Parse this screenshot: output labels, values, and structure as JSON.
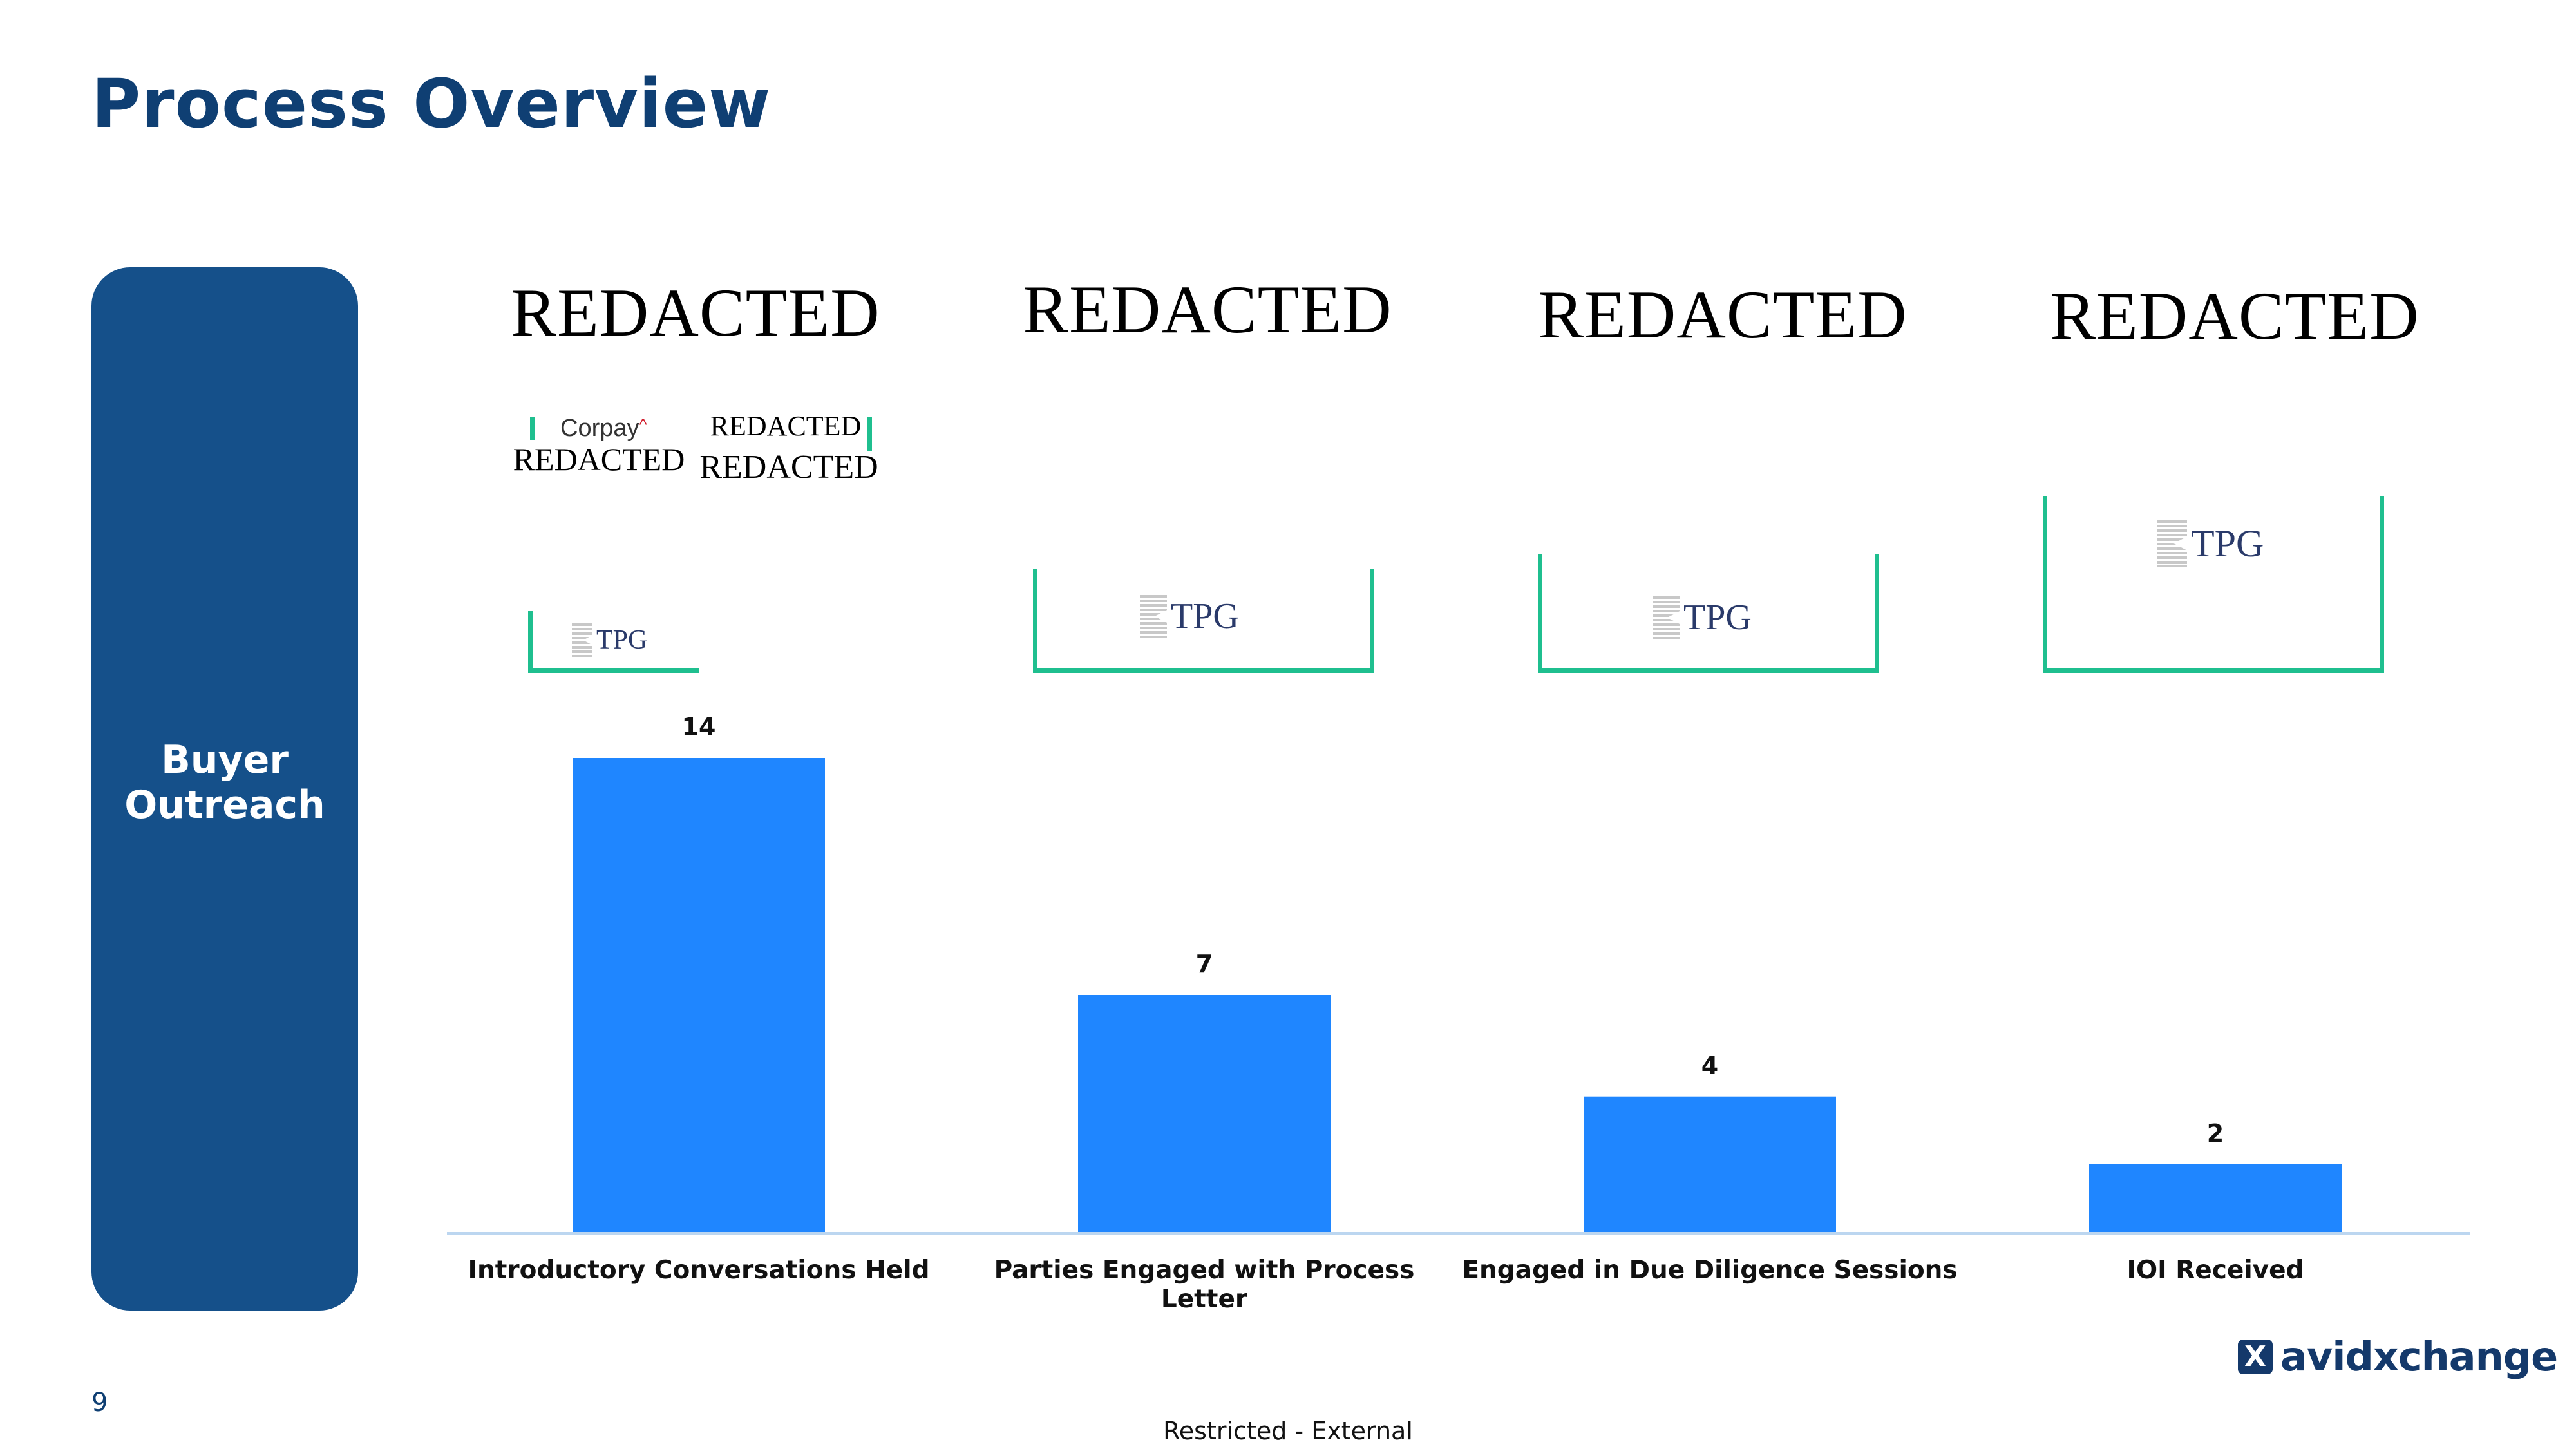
{
  "slide": {
    "title": "Process Overview",
    "side_label_line1": "Buyer",
    "side_label_line2": "Outreach",
    "page_number": "9",
    "footer": "Restricted - External",
    "brand": "avidxchange",
    "brand_icon": "X"
  },
  "annotations": {
    "headers": [
      "REDACTED",
      "REDACTED",
      "REDACTED",
      "REDACTED"
    ],
    "col1_corpay": "Corpay",
    "col1_redacted_a": "REDACTED",
    "col1_redacted_b": "REDACTED",
    "col1_redacted_c": "REDACTED",
    "tpg_label": "TPG"
  },
  "chart_data": {
    "type": "bar",
    "categories": [
      "Introductory Conversations Held",
      "Parties Engaged with Process Letter",
      "Engaged in Due Diligence Sessions",
      "IOI Received"
    ],
    "values": [
      14,
      7,
      4,
      2
    ],
    "value_labels": [
      "14",
      "7",
      "4",
      "2"
    ],
    "title": "",
    "xlabel": "",
    "ylabel": "",
    "ylim": [
      0,
      14
    ],
    "grid": false,
    "bar_color": "#1f86ff",
    "axis_color": "#bcd6f0"
  },
  "colors": {
    "title": "#0f3f73",
    "side_panel": "#15508a",
    "bracket": "#1fbf8f"
  }
}
